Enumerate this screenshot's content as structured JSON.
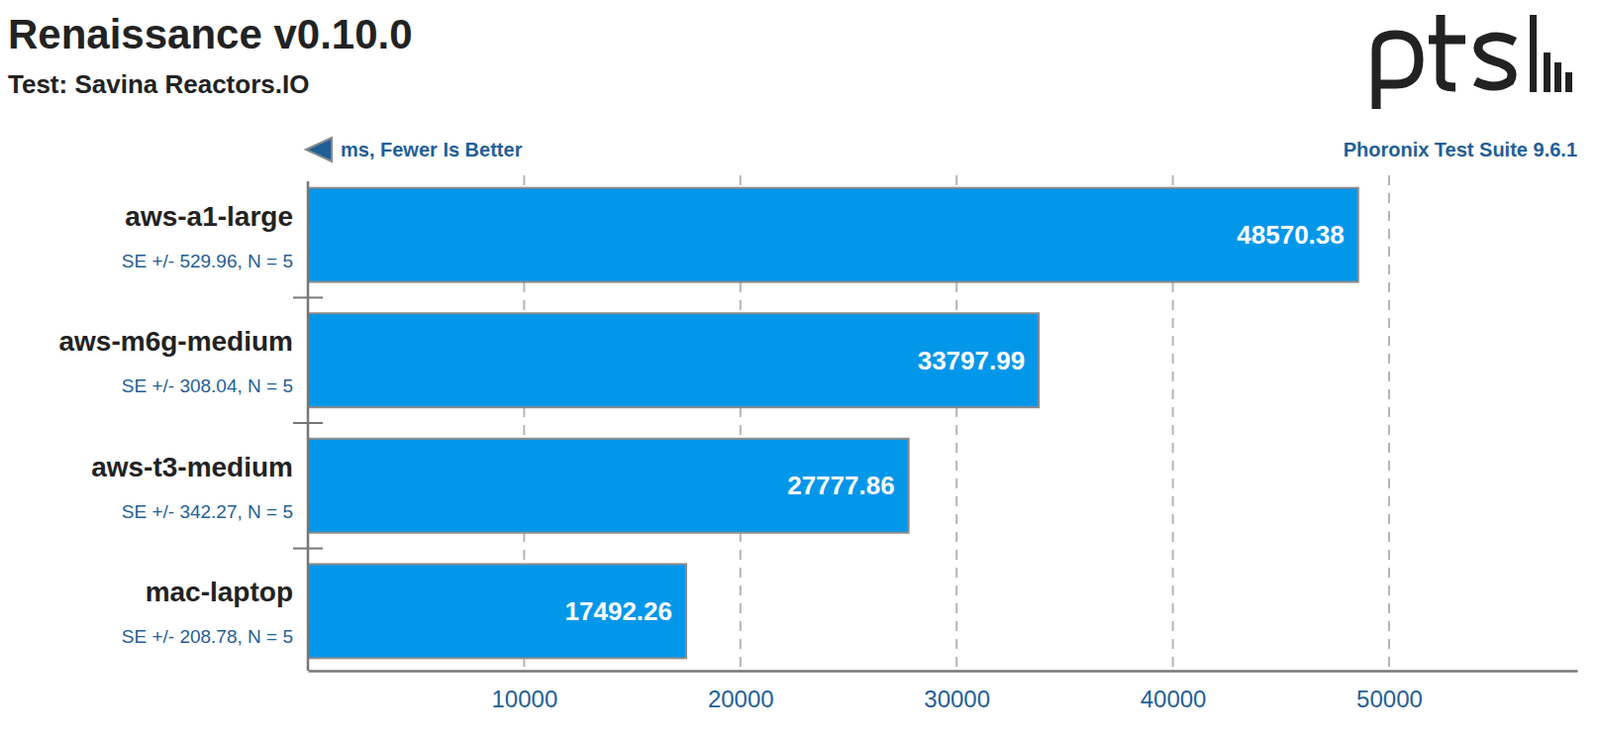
{
  "chart_data": {
    "type": "bar",
    "orientation": "horizontal",
    "title": "Renaissance v0.10.0",
    "subtitle": "Test: Savina Reactors.IO",
    "x_label": "ms, Fewer Is Better",
    "annotation": "Phoronix Test Suite 9.6.1",
    "categories": [
      "aws-a1-large",
      "aws-m6g-medium",
      "aws-t3-medium",
      "mac-laptop"
    ],
    "category_notes": [
      "SE +/- 529.96, N = 5",
      "SE +/- 308.04, N = 5",
      "SE +/- 342.27, N = 5",
      "SE +/- 208.78, N = 5"
    ],
    "values": [
      48570.38,
      33797.99,
      27777.86,
      17492.26
    ],
    "color": "#0397ea",
    "xlim": [
      0,
      58700
    ],
    "xticks": [
      10000,
      20000,
      30000,
      40000,
      50000
    ],
    "grid": true,
    "data_labels": true
  }
}
